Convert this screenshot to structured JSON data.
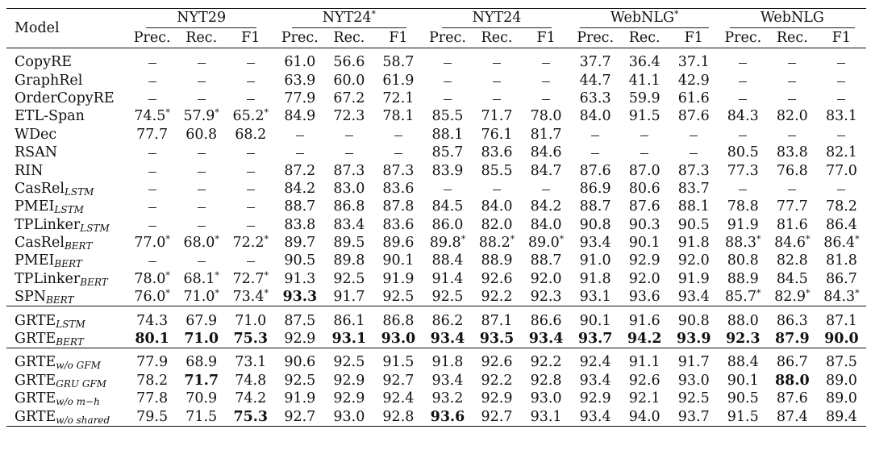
{
  "header": {
    "model_label": "Model",
    "datasets": [
      {
        "name": "NYT29",
        "star": false
      },
      {
        "name": "NYT24",
        "star": true
      },
      {
        "name": "NYT24",
        "star": false
      },
      {
        "name": "WebNLG",
        "star": true
      },
      {
        "name": "WebNLG",
        "star": false
      }
    ],
    "metrics": [
      "Prec.",
      "Rec.",
      "F1"
    ]
  },
  "groups": [
    [
      {
        "name": "CopyRE",
        "sub": "",
        "values": [
          "–",
          "–",
          "–",
          "61.0",
          "56.6",
          "58.7",
          "–",
          "–",
          "–",
          "37.7",
          "36.4",
          "37.1",
          "–",
          "–",
          "–"
        ]
      },
      {
        "name": "GraphRel",
        "sub": "",
        "values": [
          "–",
          "–",
          "–",
          "63.9",
          "60.0",
          "61.9",
          "–",
          "–",
          "–",
          "44.7",
          "41.1",
          "42.9",
          "–",
          "–",
          "–"
        ]
      },
      {
        "name": "OrderCopyRE",
        "sub": "",
        "values": [
          "–",
          "–",
          "–",
          "77.9",
          "67.2",
          "72.1",
          "–",
          "–",
          "–",
          "63.3",
          "59.9",
          "61.6",
          "–",
          "–",
          "–"
        ]
      },
      {
        "name": "ETL-Span",
        "sub": "",
        "values": [
          "74.5*",
          "57.9*",
          "65.2*",
          "84.9",
          "72.3",
          "78.1",
          "85.5",
          "71.7",
          "78.0",
          "84.0",
          "91.5",
          "87.6",
          "84.3",
          "82.0",
          "83.1"
        ]
      },
      {
        "name": "WDec",
        "sub": "",
        "values": [
          "77.7",
          "60.8",
          "68.2",
          "–",
          "–",
          "–",
          "88.1",
          "76.1",
          "81.7",
          "–",
          "–",
          "–",
          "–",
          "–",
          "–"
        ]
      },
      {
        "name": "RSAN",
        "sub": "",
        "values": [
          "–",
          "–",
          "–",
          "–",
          "–",
          "–",
          "85.7",
          "83.6",
          "84.6",
          "–",
          "–",
          "–",
          "80.5",
          "83.8",
          "82.1"
        ]
      },
      {
        "name": "RIN",
        "sub": "",
        "values": [
          "–",
          "–",
          "–",
          "87.2",
          "87.3",
          "87.3",
          "83.9",
          "85.5",
          "84.7",
          "87.6",
          "87.0",
          "87.3",
          "77.3",
          "76.8",
          "77.0"
        ]
      },
      {
        "name": "CasRel",
        "sub": "LSTM",
        "values": [
          "–",
          "–",
          "–",
          "84.2",
          "83.0",
          "83.6",
          "–",
          "–",
          "–",
          "86.9",
          "80.6",
          "83.7",
          "–",
          "–",
          "–"
        ]
      },
      {
        "name": "PMEI",
        "sub": "LSTM",
        "values": [
          "–",
          "–",
          "–",
          "88.7",
          "86.8",
          "87.8",
          "84.5",
          "84.0",
          "84.2",
          "88.7",
          "87.6",
          "88.1",
          "78.8",
          "77.7",
          "78.2"
        ]
      },
      {
        "name": "TPLinker",
        "sub": "LSTM",
        "values": [
          "–",
          "–",
          "–",
          "83.8",
          "83.4",
          "83.6",
          "86.0",
          "82.0",
          "84.0",
          "90.8",
          "90.3",
          "90.5",
          "91.9",
          "81.6",
          "86.4"
        ]
      },
      {
        "name": "CasRel",
        "sub": "BERT",
        "values": [
          "77.0*",
          "68.0*",
          "72.2*",
          "89.7",
          "89.5",
          "89.6",
          "89.8*",
          "88.2*",
          "89.0*",
          "93.4",
          "90.1",
          "91.8",
          "88.3*",
          "84.6*",
          "86.4*"
        ]
      },
      {
        "name": "PMEI",
        "sub": "BERT",
        "values": [
          "–",
          "–",
          "–",
          "90.5",
          "89.8",
          "90.1",
          "88.4",
          "88.9",
          "88.7",
          "91.0",
          "92.9",
          "92.0",
          "80.8",
          "82.8",
          "81.8"
        ]
      },
      {
        "name": "TPLinker",
        "sub": "BERT",
        "values": [
          "78.0*",
          "68.1*",
          "72.7*",
          "91.3",
          "92.5",
          "91.9",
          "91.4",
          "92.6",
          "92.0",
          "91.8",
          "92.0",
          "91.9",
          "88.9",
          "84.5",
          "86.7"
        ]
      },
      {
        "name": "SPN",
        "sub": "BERT",
        "values": [
          "76.0*",
          "71.0*",
          "73.4*",
          "**93.3",
          "91.7",
          "92.5",
          "92.5",
          "92.2",
          "92.3",
          "93.1",
          "93.6",
          "93.4",
          "85.7*",
          "82.9*",
          "84.3*"
        ]
      }
    ],
    [
      {
        "name": "GRTE",
        "sub": "LSTM",
        "values": [
          "74.3",
          "67.9",
          "71.0",
          "87.5",
          "86.1",
          "86.8",
          "86.2",
          "87.1",
          "86.6",
          "90.1",
          "91.6",
          "90.8",
          "88.0",
          "86.3",
          "87.1"
        ]
      },
      {
        "name": "GRTE",
        "sub": "BERT",
        "values": [
          "**80.1",
          "**71.0",
          "**75.3",
          "92.9",
          "**93.1",
          "**93.0",
          "**93.4",
          "**93.5",
          "**93.4",
          "**93.7",
          "**94.2",
          "**93.9",
          "**92.3",
          "**87.9",
          "**90.0"
        ]
      }
    ],
    [
      {
        "name": "GRTE",
        "sub": "w/o GFM",
        "values": [
          "77.9",
          "68.9",
          "73.1",
          "90.6",
          "92.5",
          "91.5",
          "91.8",
          "92.6",
          "92.2",
          "92.4",
          "91.1",
          "91.7",
          "88.4",
          "86.7",
          "87.5"
        ]
      },
      {
        "name": "GRTE",
        "sub": "GRU GFM",
        "values": [
          "78.2",
          "**71.7",
          "74.8",
          "92.5",
          "92.9",
          "92.7",
          "93.4",
          "92.2",
          "92.8",
          "93.4",
          "92.6",
          "93.0",
          "90.1",
          "**88.0",
          "89.0"
        ]
      },
      {
        "name": "GRTE",
        "sub": "w/o m−h",
        "values": [
          "77.8",
          "70.9",
          "74.2",
          "91.9",
          "92.9",
          "92.4",
          "93.2",
          "92.9",
          "93.0",
          "92.9",
          "92.1",
          "92.5",
          "90.5",
          "87.6",
          "89.0"
        ]
      },
      {
        "name": "GRTE",
        "sub": "w/o shared",
        "values": [
          "79.5",
          "71.5",
          "**75.3",
          "92.7",
          "93.0",
          "92.8",
          "**93.6",
          "92.7",
          "93.1",
          "93.4",
          "94.0",
          "93.7",
          "91.5",
          "87.4",
          "89.4"
        ]
      }
    ]
  ]
}
